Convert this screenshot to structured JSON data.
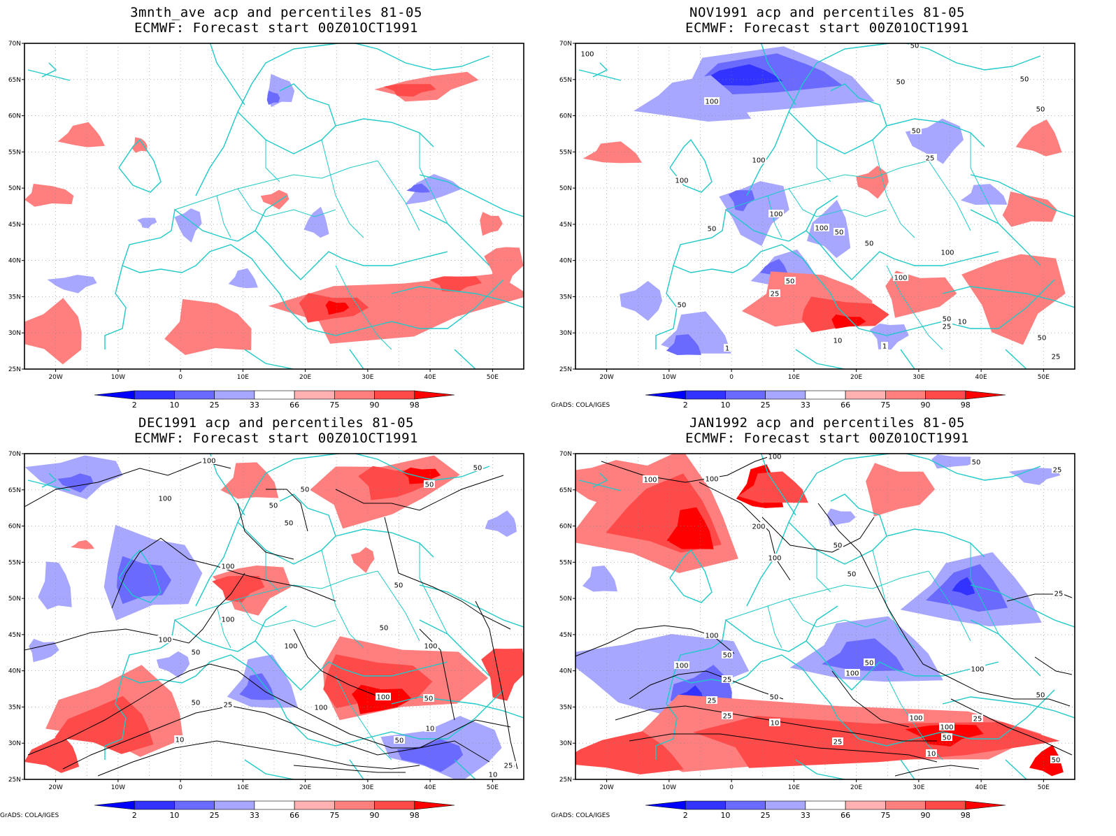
{
  "credit": "GrADS: COLA/IGES",
  "axes": {
    "lat_ticks": [
      "70N",
      "65N",
      "60N",
      "55N",
      "50N",
      "45N",
      "40N",
      "35N",
      "30N",
      "25N"
    ],
    "lon_ticks": [
      "20W",
      "10W",
      "0",
      "10E",
      "20E",
      "30E",
      "40E",
      "50E"
    ]
  },
  "colorbar": {
    "labels": [
      "2",
      "10",
      "25",
      "33",
      "66",
      "75",
      "90",
      "98"
    ],
    "colors": [
      "#0000ff",
      "#3333ff",
      "#6a6aff",
      "#a7a7ff",
      "#ffffff",
      "#ffb0b0",
      "#ff7f7f",
      "#ff4a4a",
      "#ff0000"
    ]
  },
  "panels": [
    {
      "title1": "3mnth_ave acp and percentiles 81-05",
      "title2": "ECMWF: Forecast start 00Z01OCT1991",
      "credit": "",
      "contours": []
    },
    {
      "title1": "NOV1991 acp and percentiles 81-05",
      "title2": "ECMWF: Forecast start 00Z01OCT1991",
      "credit": "GrADS: COLA/IGES",
      "contours": [
        "100",
        "50",
        "50",
        "100",
        "50",
        "50",
        "50",
        "50",
        "25",
        "100",
        "100",
        "100",
        "100",
        "50",
        "50",
        "50",
        "100",
        "50",
        "100",
        "50",
        "25",
        "10",
        "1",
        "50",
        "25",
        "10",
        "1",
        "50",
        "25"
      ]
    },
    {
      "title1": "DEC1991 acp and percentiles 81-05",
      "title2": "ECMWF: Forecast start 00Z01OCT1991",
      "credit": "GrADS: COLA/IGES",
      "contours": [
        "100",
        "100",
        "50",
        "50",
        "50",
        "50",
        "100",
        "50",
        "50",
        "100",
        "100",
        "50",
        "25",
        "100",
        "100",
        "50",
        "100",
        "50",
        "10",
        "50",
        "25",
        "100",
        "50",
        "10",
        "50",
        "25",
        "1",
        "10",
        "25"
      ]
    },
    {
      "title1": "JAN1992 acp and percentiles 81-05",
      "title2": "ECMWF: Forecast start 00Z01OCT1991",
      "credit": "GrADS: COLA/IGES",
      "contours": [
        "100",
        "100",
        "100",
        "50",
        "25",
        "200",
        "50",
        "100",
        "50",
        "25",
        "100",
        "50",
        "100",
        "50",
        "25",
        "100",
        "100",
        "25",
        "50",
        "50",
        "25",
        "10",
        "100",
        "100",
        "50",
        "25",
        "25",
        "10",
        "50"
      ]
    }
  ]
}
